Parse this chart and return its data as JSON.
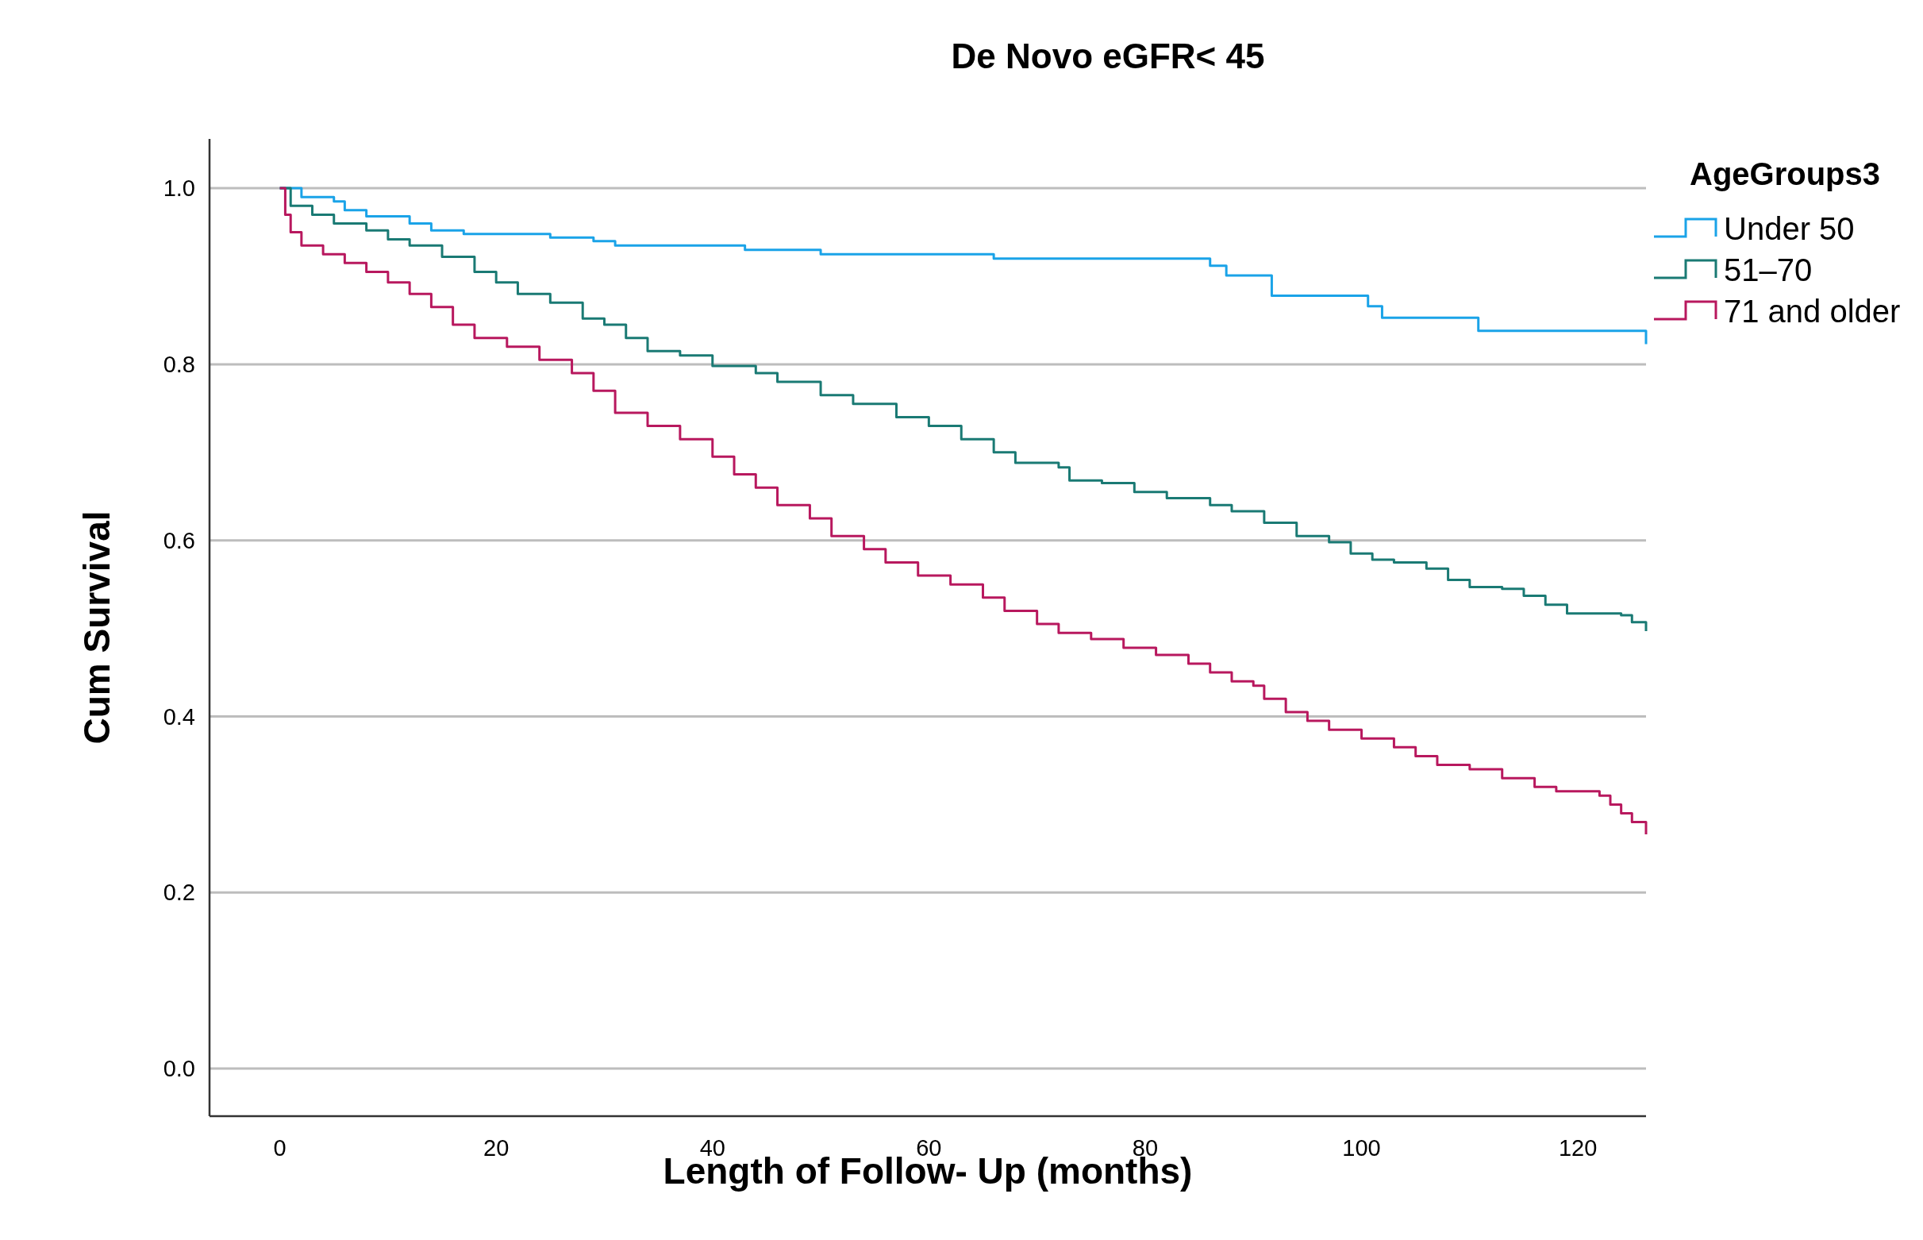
{
  "chart_data": {
    "type": "step",
    "title": "De Novo eGFR< 45",
    "xlabel": "Length of Follow- Up (months)",
    "ylabel": "Cum Survival",
    "legend_title": "AgeGroups3",
    "legend": "right",
    "grid": "y",
    "xlim": [
      -6.5,
      126.3
    ],
    "ylim": [
      -0.054,
      1.056
    ],
    "xticks": [
      0,
      20,
      40,
      60,
      80,
      100,
      120
    ],
    "yticks": [
      {
        "value": 0,
        "label": "0.0"
      },
      {
        "value": 0.2,
        "label": "0.2"
      },
      {
        "value": 0.4,
        "label": "0.4"
      },
      {
        "value": 0.6,
        "label": "0.6"
      },
      {
        "value": 0.8,
        "label": "0.8"
      },
      {
        "value": 1,
        "label": "1.0"
      }
    ],
    "series": [
      {
        "name": "Under 50",
        "color": "#1aa3e8",
        "x": [
          0,
          2,
          5,
          6,
          8,
          12,
          14,
          17,
          25,
          29,
          31,
          43,
          50,
          66,
          86,
          87.5,
          91.7,
          100.6,
          101.9,
          110.8,
          126.3
        ],
        "values": [
          1,
          0.99,
          0.985,
          0.975,
          0.968,
          0.96,
          0.952,
          0.948,
          0.944,
          0.94,
          0.935,
          0.93,
          0.925,
          0.92,
          0.912,
          0.901,
          0.878,
          0.866,
          0.853,
          0.838,
          0.823
        ]
      },
      {
        "name": "51–70",
        "color": "#1a7a74",
        "x": [
          0,
          1,
          3,
          5,
          8,
          10,
          12,
          15,
          18,
          20,
          22,
          25,
          28,
          30,
          32,
          34,
          37,
          40,
          44,
          46,
          50,
          53,
          57,
          60,
          63,
          66,
          68,
          72,
          73,
          76,
          79,
          82,
          86,
          88,
          91,
          94,
          97,
          99,
          101,
          103,
          106,
          108,
          110,
          113,
          115,
          117,
          119,
          124,
          125,
          126.3
        ],
        "values": [
          1,
          0.98,
          0.97,
          0.96,
          0.952,
          0.942,
          0.935,
          0.922,
          0.905,
          0.893,
          0.88,
          0.87,
          0.852,
          0.845,
          0.83,
          0.815,
          0.81,
          0.798,
          0.79,
          0.78,
          0.765,
          0.755,
          0.74,
          0.73,
          0.715,
          0.7,
          0.688,
          0.683,
          0.668,
          0.665,
          0.655,
          0.648,
          0.64,
          0.633,
          0.62,
          0.605,
          0.598,
          0.585,
          0.578,
          0.575,
          0.568,
          0.555,
          0.547,
          0.545,
          0.537,
          0.527,
          0.517,
          0.515,
          0.507,
          0.497
        ]
      },
      {
        "name": "71 and older",
        "color": "#b8185e",
        "x": [
          0,
          0.5,
          1,
          2,
          4,
          6,
          8,
          10,
          12,
          14,
          16,
          18,
          21,
          24,
          27,
          29,
          31,
          34,
          37,
          40,
          42,
          44,
          46,
          49,
          51,
          54,
          56,
          59,
          62,
          65,
          67,
          70,
          72,
          75,
          78,
          81,
          84,
          86,
          88,
          90,
          91,
          93,
          95,
          97,
          100,
          103,
          105,
          107,
          110,
          113,
          116,
          118,
          122,
          123,
          124,
          125,
          126.3
        ],
        "values": [
          1,
          0.97,
          0.95,
          0.935,
          0.925,
          0.915,
          0.905,
          0.893,
          0.88,
          0.865,
          0.845,
          0.83,
          0.82,
          0.805,
          0.79,
          0.77,
          0.745,
          0.73,
          0.715,
          0.695,
          0.675,
          0.66,
          0.64,
          0.625,
          0.605,
          0.59,
          0.575,
          0.56,
          0.55,
          0.535,
          0.52,
          0.505,
          0.495,
          0.488,
          0.478,
          0.47,
          0.46,
          0.45,
          0.44,
          0.435,
          0.42,
          0.405,
          0.395,
          0.385,
          0.375,
          0.365,
          0.355,
          0.345,
          0.34,
          0.33,
          0.32,
          0.315,
          0.31,
          0.3,
          0.29,
          0.28,
          0.266
        ]
      }
    ]
  }
}
